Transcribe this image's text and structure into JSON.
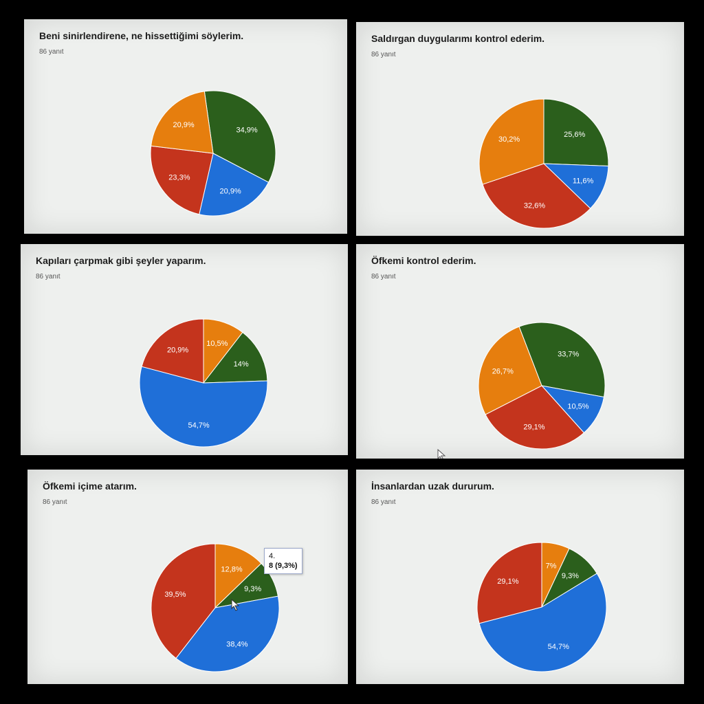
{
  "colors": {
    "blue": "#1f6fd8",
    "red": "#c4341d",
    "orange": "#e67e0e",
    "green": "#2b5f1c",
    "slice_border": "#ffffff"
  },
  "chart_data": [
    {
      "type": "pie",
      "title": "Beni sinirlendirene, ne hissettiğimi söylerim.",
      "subtitle": "86 yanıt",
      "slices": [
        {
          "label": "34,9%",
          "value": 34.9,
          "color": "green"
        },
        {
          "label": "20,9%",
          "value": 20.9,
          "color": "blue"
        },
        {
          "label": "23,3%",
          "value": 23.3,
          "color": "red"
        },
        {
          "label": "20,9%",
          "value": 20.9,
          "color": "orange"
        }
      ]
    },
    {
      "type": "pie",
      "title": "Saldırgan duygularımı kontrol ederim.",
      "subtitle": "86 yanıt",
      "slices": [
        {
          "label": "25,6%",
          "value": 25.6,
          "color": "green"
        },
        {
          "label": "11,6%",
          "value": 11.6,
          "color": "blue"
        },
        {
          "label": "32,6%",
          "value": 32.6,
          "color": "red"
        },
        {
          "label": "30,2%",
          "value": 30.2,
          "color": "orange"
        }
      ]
    },
    {
      "type": "pie",
      "title": "Kapıları çarpmak gibi şeyler yaparım.",
      "subtitle": "86 yanıt",
      "slices": [
        {
          "label": "10,5%",
          "value": 10.5,
          "color": "orange"
        },
        {
          "label": "14%",
          "value": 14.0,
          "color": "green"
        },
        {
          "label": "54,7%",
          "value": 54.7,
          "color": "blue"
        },
        {
          "label": "20,9%",
          "value": 20.9,
          "color": "red"
        }
      ]
    },
    {
      "type": "pie",
      "title": "Öfkemi kontrol ederim.",
      "subtitle": "86 yanıt",
      "slices": [
        {
          "label": "33,7%",
          "value": 33.7,
          "color": "green"
        },
        {
          "label": "10,5%",
          "value": 10.5,
          "color": "blue"
        },
        {
          "label": "29,1%",
          "value": 29.1,
          "color": "red"
        },
        {
          "label": "26,7%",
          "value": 26.7,
          "color": "orange"
        }
      ]
    },
    {
      "type": "pie",
      "title": "Öfkemi içime atarım.",
      "subtitle": "86 yanıt",
      "slices": [
        {
          "label": "12,8%",
          "value": 12.8,
          "color": "orange"
        },
        {
          "label": "9,3%",
          "value": 9.3,
          "color": "green"
        },
        {
          "label": "38,4%",
          "value": 38.4,
          "color": "blue"
        },
        {
          "label": "39,5%",
          "value": 39.5,
          "color": "red"
        }
      ],
      "tooltip": {
        "category": "4.",
        "value": "8 (9,3%)"
      }
    },
    {
      "type": "pie",
      "title": "İnsanlardan uzak dururum.",
      "subtitle": "86 yanıt",
      "slices": [
        {
          "label": "7%",
          "value": 7.0,
          "color": "orange"
        },
        {
          "label": "9,3%",
          "value": 9.3,
          "color": "green"
        },
        {
          "label": "54,7%",
          "value": 54.7,
          "color": "blue"
        },
        {
          "label": "29,1%",
          "value": 29.1,
          "color": "red"
        }
      ]
    }
  ]
}
